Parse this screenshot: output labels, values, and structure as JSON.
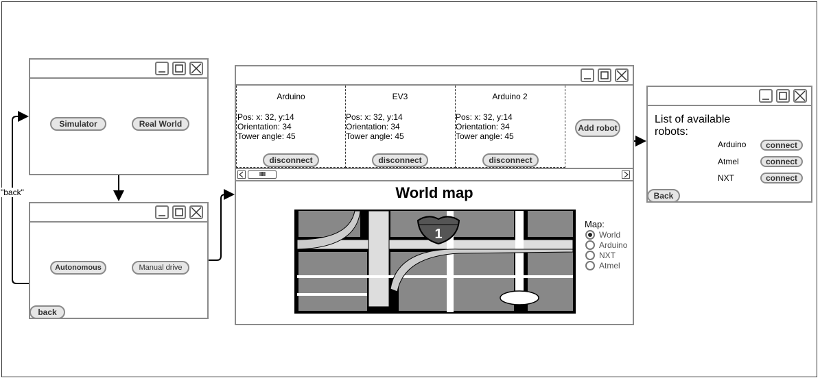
{
  "mode_window": {
    "simulator_label": "Simulator",
    "real_world_label": "Real World"
  },
  "drive_window": {
    "autonomous_label": "Autonomous",
    "manual_drive_label": "Manual drive",
    "back_label": "back"
  },
  "back_edge_label": "\"back\"",
  "robots_window": {
    "robots": [
      {
        "name": "Arduino",
        "pos": "Pos: x: 32, y:14",
        "orientation": "Orientation: 34",
        "tower": "Tower angle: 45",
        "disconnect_label": "disconnect"
      },
      {
        "name": "EV3",
        "pos": "Pos: x: 32, y:14",
        "orientation": "Orientation: 34",
        "tower": "Tower angle: 45",
        "disconnect_label": "disconnect"
      },
      {
        "name": "Arduino 2",
        "pos": "Pos: x: 32, y:14",
        "orientation": "Orientation: 34",
        "tower": "Tower angle: 45",
        "disconnect_label": "disconnect"
      }
    ],
    "add_robot_label": "Add robot",
    "scroll_thumb_glyph": "IIIIIII",
    "map_title": "World map",
    "map_selector": {
      "label": "Map:",
      "options": [
        "World",
        "Arduino",
        "NXT",
        "Atmel"
      ],
      "selected": "World"
    },
    "road_sign_number": "1"
  },
  "available_window": {
    "title_line1": "List of available",
    "title_line2": "robots:",
    "robots": [
      {
        "name": "Arduino",
        "connect_label": "connect"
      },
      {
        "name": "Atmel",
        "connect_label": "connect"
      },
      {
        "name": "NXT",
        "connect_label": "connect"
      }
    ],
    "back_label": "Back"
  },
  "colors": {
    "window_border": "#8a8a8a",
    "map_block": "#888888",
    "road": "#e0e0e0",
    "sign": "#555555"
  }
}
